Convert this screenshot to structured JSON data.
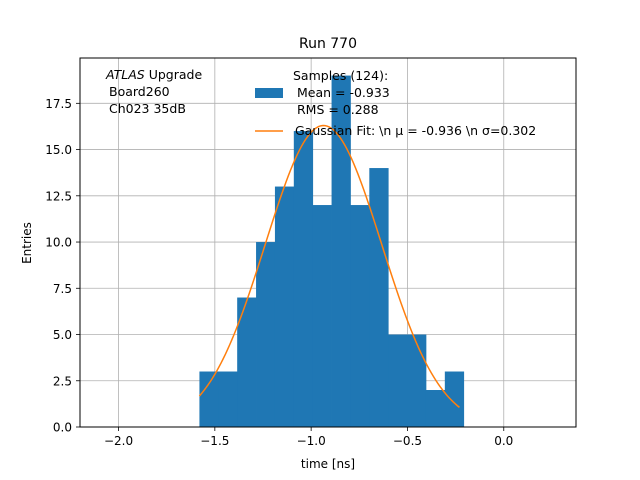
{
  "chart_data": {
    "type": "bar",
    "title": "Run 770",
    "xlabel": "time [ns]",
    "ylabel": "Entries",
    "xlim": [
      -2.2,
      0.375
    ],
    "ylim": [
      0,
      19.95
    ],
    "grid": true,
    "legend_position": "top-right",
    "xticks": [
      -2.0,
      -1.5,
      -1.0,
      -0.5,
      0.0
    ],
    "xtick_labels": [
      "−2.0",
      "−1.5",
      "−1.0",
      "−0.5",
      "0.0"
    ],
    "yticks": [
      0.0,
      2.5,
      5.0,
      7.5,
      10.0,
      12.5,
      15.0,
      17.5
    ],
    "ytick_labels": [
      "0.0",
      "2.5",
      "5.0",
      "7.5",
      "10.0",
      "12.5",
      "15.0",
      "17.5"
    ],
    "annotation": {
      "italic": "ATLAS",
      "line1_rest": " Upgrade",
      "line2": "Board260",
      "line3": "Ch023 35dB"
    },
    "histogram": {
      "name_lines": [
        "Samples (124):",
        " Mean = -0.933",
        " RMS = 0.288"
      ],
      "color": "#1f77b4",
      "bin_edges": [
        -1.58,
        -1.482,
        -1.384,
        -1.286,
        -1.188,
        -1.09,
        -0.992,
        -0.894,
        -0.796,
        -0.698,
        -0.6,
        -0.502,
        -0.404,
        -0.306,
        -0.208
      ],
      "counts": [
        3,
        3,
        7,
        10,
        13,
        16,
        12,
        19,
        12,
        14,
        5,
        5,
        2,
        3
      ]
    },
    "fit": {
      "name": "Gaussian Fit: \\n μ = -0.936 \\n σ=0.302",
      "color": "#ff7f0e",
      "mu": -0.936,
      "sigma": 0.302,
      "amplitude": 16.3,
      "x_range": [
        -1.58,
        -0.23
      ]
    }
  }
}
